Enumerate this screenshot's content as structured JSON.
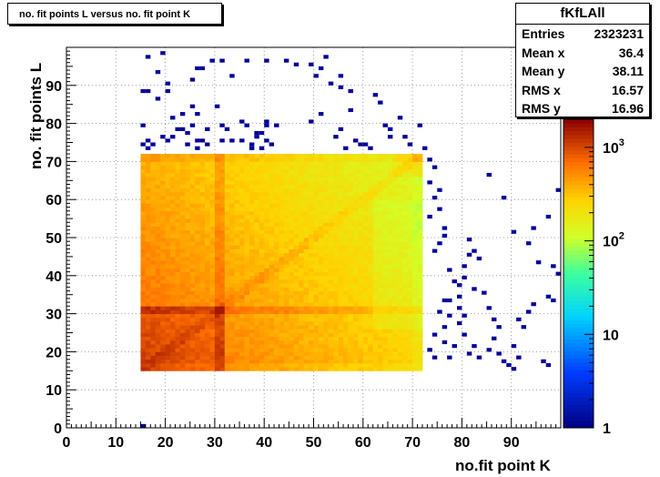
{
  "title": "no. fit points L versus no. fit point K",
  "stats": {
    "name": "fKfLAll",
    "rows": [
      {
        "label": "Entries",
        "value": "2323231"
      },
      {
        "label": "Mean x",
        "value": "36.4"
      },
      {
        "label": "Mean y",
        "value": "38.11"
      },
      {
        "label": "RMS x",
        "value": "16.57"
      },
      {
        "label": "RMS y",
        "value": "16.96"
      }
    ]
  },
  "chart_data": {
    "type": "heatmap",
    "title": "no. fit points L versus no. fit point K",
    "xlabel": "no.fit point K",
    "ylabel": "no. fit points  L",
    "xlim": [
      0,
      100
    ],
    "ylim": [
      0,
      100
    ],
    "x_ticks": [
      "0",
      "10",
      "20",
      "30",
      "40",
      "50",
      "60",
      "70",
      "80",
      "90"
    ],
    "y_ticks": [
      "0",
      "10",
      "20",
      "30",
      "40",
      "50",
      "60",
      "70",
      "80",
      "90"
    ],
    "grid": true,
    "colorbar": {
      "scale": "log",
      "range": [
        1,
        2000
      ],
      "ticks": [
        {
          "value": 1,
          "label": "1",
          "sup": ""
        },
        {
          "value": 10,
          "label": "10",
          "sup": ""
        },
        {
          "value": 100,
          "label": "10",
          "sup": "2"
        },
        {
          "value": 1000,
          "label": "10",
          "sup": "3"
        }
      ]
    },
    "dense_region": {
      "x_range": [
        15,
        72
      ],
      "y_range": [
        15,
        72
      ]
    },
    "sparse_points": [
      [
        15,
        0
      ],
      [
        15,
        88
      ],
      [
        16,
        88
      ],
      [
        15,
        79
      ],
      [
        16,
        75
      ],
      [
        15,
        74
      ],
      [
        16,
        73
      ],
      [
        17,
        74
      ],
      [
        18,
        93
      ],
      [
        19,
        98
      ],
      [
        16,
        97
      ],
      [
        18,
        86
      ],
      [
        20,
        88
      ],
      [
        19,
        76
      ],
      [
        20,
        75
      ],
      [
        21,
        76
      ],
      [
        22,
        78
      ],
      [
        21,
        81
      ],
      [
        20,
        90
      ],
      [
        23,
        82
      ],
      [
        23,
        78
      ],
      [
        24,
        74
      ],
      [
        24,
        77
      ],
      [
        25,
        79
      ],
      [
        26,
        75
      ],
      [
        25,
        84
      ],
      [
        25,
        91
      ],
      [
        26,
        94
      ],
      [
        26,
        73
      ],
      [
        27,
        75
      ],
      [
        28,
        74
      ],
      [
        28,
        78
      ],
      [
        26,
        82
      ],
      [
        27,
        94
      ],
      [
        29,
        96
      ],
      [
        30,
        84
      ],
      [
        31,
        96
      ],
      [
        31,
        79
      ],
      [
        32,
        78
      ],
      [
        31,
        75
      ],
      [
        33,
        92
      ],
      [
        33,
        75
      ],
      [
        35,
        80
      ],
      [
        35,
        75
      ],
      [
        36,
        79
      ],
      [
        36,
        96
      ],
      [
        37,
        73
      ],
      [
        38,
        77
      ],
      [
        37,
        74
      ],
      [
        38,
        76
      ],
      [
        39,
        77
      ],
      [
        39,
        73
      ],
      [
        40,
        75
      ],
      [
        40,
        80
      ],
      [
        40,
        79
      ],
      [
        42,
        79
      ],
      [
        41,
        74
      ],
      [
        40,
        96
      ],
      [
        44,
        96
      ],
      [
        46,
        95
      ],
      [
        49,
        95
      ],
      [
        49,
        80
      ],
      [
        51,
        82
      ],
      [
        50,
        92
      ],
      [
        51,
        94
      ],
      [
        52,
        97
      ],
      [
        53,
        90
      ],
      [
        55,
        92
      ],
      [
        54,
        76
      ],
      [
        55,
        78
      ],
      [
        56,
        73
      ],
      [
        55,
        89
      ],
      [
        57,
        88
      ],
      [
        58,
        75
      ],
      [
        59,
        74
      ],
      [
        57,
        83
      ],
      [
        60,
        74
      ],
      [
        61,
        73
      ],
      [
        63,
        85
      ],
      [
        62,
        87
      ],
      [
        64,
        79
      ],
      [
        65,
        76
      ],
      [
        65,
        78
      ],
      [
        67,
        81
      ],
      [
        68,
        76
      ],
      [
        69,
        74
      ],
      [
        71,
        79
      ],
      [
        72,
        73
      ],
      [
        73,
        70
      ],
      [
        74,
        68
      ],
      [
        73,
        64
      ],
      [
        75,
        62
      ],
      [
        73,
        55
      ],
      [
        74,
        60
      ],
      [
        75,
        57
      ],
      [
        76,
        50
      ],
      [
        74,
        46
      ],
      [
        75,
        48
      ],
      [
        76,
        52
      ],
      [
        77,
        41
      ],
      [
        78,
        38
      ],
      [
        77,
        33
      ],
      [
        79,
        34
      ],
      [
        80,
        29
      ],
      [
        76,
        33
      ],
      [
        75,
        30
      ],
      [
        76,
        22
      ],
      [
        79,
        27
      ],
      [
        80,
        24
      ],
      [
        81,
        19
      ],
      [
        82,
        21
      ],
      [
        83,
        18
      ],
      [
        85,
        20
      ],
      [
        78,
        21
      ],
      [
        77,
        18
      ],
      [
        76,
        26
      ],
      [
        74,
        24
      ],
      [
        73,
        20
      ],
      [
        74,
        18
      ],
      [
        79,
        37
      ],
      [
        80,
        42
      ],
      [
        81,
        45
      ],
      [
        83,
        44
      ],
      [
        82,
        36
      ],
      [
        84,
        35
      ],
      [
        85,
        31
      ],
      [
        86,
        28
      ],
      [
        87,
        26
      ],
      [
        86,
        23
      ],
      [
        87,
        19
      ],
      [
        88,
        17
      ],
      [
        89,
        16
      ],
      [
        90,
        15
      ],
      [
        91,
        18
      ],
      [
        90,
        21
      ],
      [
        91,
        28
      ],
      [
        92,
        26
      ],
      [
        93,
        30
      ],
      [
        94,
        32
      ],
      [
        96,
        17
      ],
      [
        97,
        16
      ],
      [
        97,
        34
      ],
      [
        98,
        33
      ],
      [
        99,
        40
      ],
      [
        98,
        42
      ],
      [
        95,
        43
      ],
      [
        93,
        48
      ],
      [
        94,
        52
      ],
      [
        97,
        55
      ],
      [
        99,
        62
      ],
      [
        90,
        51
      ],
      [
        88,
        60
      ],
      [
        85,
        66
      ],
      [
        82,
        46
      ],
      [
        81,
        49
      ],
      [
        80,
        39
      ],
      [
        79,
        31
      ],
      [
        77,
        29
      ]
    ]
  }
}
